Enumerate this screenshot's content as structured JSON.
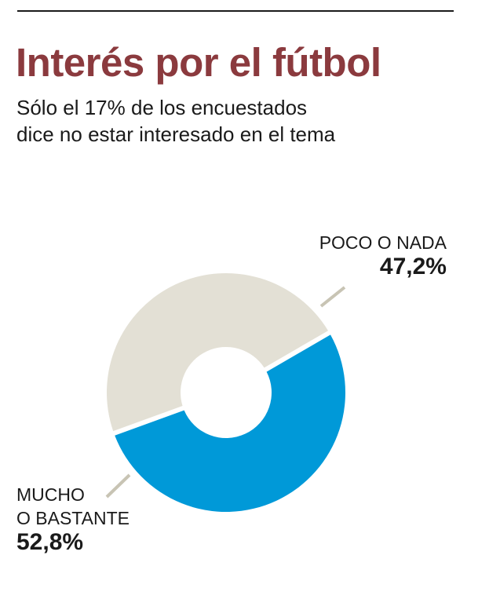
{
  "header": {
    "title": "Interés por el fútbol",
    "subtitle_lines": [
      "Sólo el 17% de los encuestados",
      "dice no estar interesado en el tema"
    ]
  },
  "colors": {
    "title": "#8b3a3e",
    "mucho": "#0099d8",
    "poco": "#e3e0d5",
    "leader": "#c8c4b4"
  },
  "chart_data": {
    "type": "pie",
    "title": "Interés por el fútbol",
    "slices": [
      {
        "label_lines": [
          "POCO O NADA"
        ],
        "value": 47.2,
        "value_label": "47,2%",
        "color": "#e3e0d5"
      },
      {
        "label_lines": [
          "MUCHO",
          "O BASTANTE"
        ],
        "value": 52.8,
        "value_label": "52,8%",
        "color": "#0099d8"
      }
    ]
  }
}
